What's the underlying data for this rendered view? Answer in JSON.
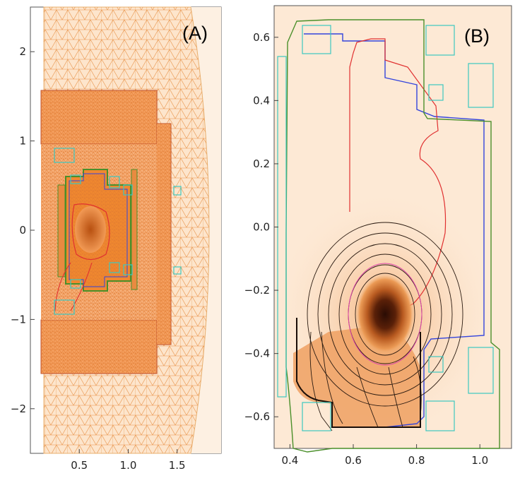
{
  "panels": [
    {
      "label": "(A)",
      "x_ticks": [
        "0.5",
        "1.0",
        "1.5"
      ],
      "x_tick_values": [
        0.5,
        1.0,
        1.5
      ],
      "y_ticks": [
        "2",
        "1",
        "0",
        "−1",
        "−2"
      ],
      "y_tick_values": [
        2,
        1,
        0,
        -1,
        -2
      ],
      "x_range": [
        0.0,
        1.95
      ],
      "y_range": [
        -2.5,
        2.5
      ]
    },
    {
      "label": "(B)",
      "x_ticks": [
        "0.4",
        "0.6",
        "0.8",
        "1.0"
      ],
      "x_tick_values": [
        0.4,
        0.6,
        0.8,
        1.0
      ],
      "y_ticks": [
        "0.6",
        "0.4",
        "0.2",
        "0.0",
        "−0.2",
        "−0.4",
        "−0.6"
      ],
      "y_tick_values": [
        0.6,
        0.4,
        0.2,
        0.0,
        -0.2,
        -0.4,
        -0.6
      ],
      "x_range": [
        0.35,
        1.1
      ],
      "y_range": [
        -0.7,
        0.7
      ]
    }
  ],
  "colors": {
    "mesh_fill": "#f7a868",
    "mesh_dense": "#ee8533",
    "background": "#fde9d5",
    "coil": "#3cc8c0",
    "vessel_green": "#4a8f2a",
    "separatrix_blue": "#3344dd",
    "contour_red": "#e03030",
    "contour_dark": "#2a1a10"
  }
}
